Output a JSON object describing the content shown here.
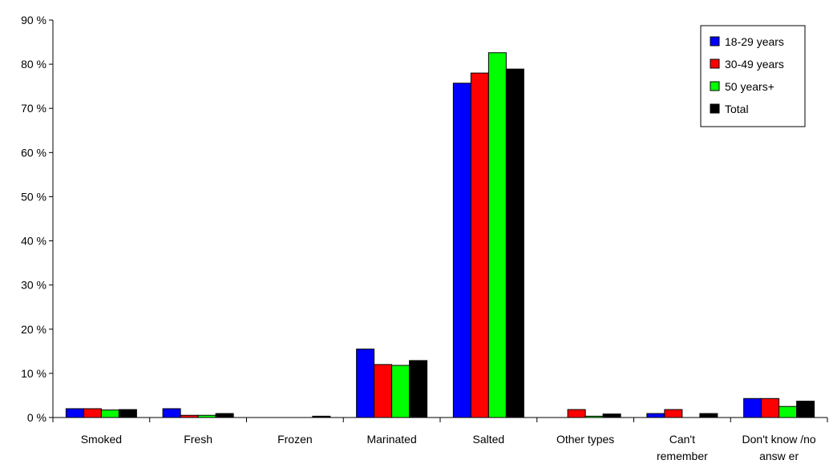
{
  "chart_data": {
    "type": "bar",
    "title": "",
    "xlabel": "",
    "ylabel": "",
    "ylim": [
      0,
      90
    ],
    "yticks": [
      0,
      10,
      20,
      30,
      40,
      50,
      60,
      70,
      80,
      90
    ],
    "ytick_suffix": " %",
    "grid": false,
    "legend_position": "top-right",
    "categories": [
      [
        "Smoked"
      ],
      [
        "Fresh"
      ],
      [
        "Frozen"
      ],
      [
        "Marinated"
      ],
      [
        "Salted"
      ],
      [
        "Other types"
      ],
      [
        "Can't",
        "remember"
      ],
      [
        "Don't know /no",
        "answ er"
      ]
    ],
    "series": [
      {
        "name": "18-29 years",
        "color": "#0000ff",
        "values": [
          2.0,
          2.0,
          0.0,
          15.5,
          75.7,
          0.0,
          0.9,
          4.3
        ]
      },
      {
        "name": "30-49 years",
        "color": "#ff0000",
        "values": [
          2.0,
          0.5,
          0.0,
          12.0,
          78.0,
          1.8,
          1.8,
          4.3
        ]
      },
      {
        "name": "50 years+",
        "color": "#00ff00",
        "values": [
          1.7,
          0.5,
          0.0,
          11.8,
          82.6,
          0.3,
          0.0,
          2.5
        ]
      },
      {
        "name": "Total",
        "color": "#000000",
        "values": [
          1.8,
          0.9,
          0.3,
          12.9,
          78.9,
          0.8,
          0.9,
          3.7
        ]
      }
    ]
  }
}
